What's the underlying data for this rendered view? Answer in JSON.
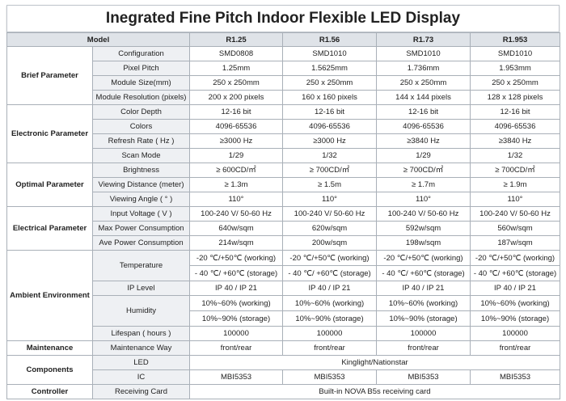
{
  "title": "Inegrated Fine Pitch Indoor Flexible LED Display",
  "header": {
    "model": "Model",
    "models": [
      "R1.25",
      "R1.56",
      "R1.73",
      "R1.953"
    ]
  },
  "groups": {
    "brief": "Brief  Parameter",
    "electronic": "Electronic Parameter",
    "optimal": "Optimal Parameter",
    "electrical": "Electrical Parameter",
    "ambient": "Ambient Environment",
    "maintenance": "Maintenance",
    "components": "Components",
    "controller": "Controller"
  },
  "rows": {
    "configuration": {
      "label": "Configuration",
      "values": [
        "SMD0808",
        "SMD1010",
        "SMD1010",
        "SMD1010"
      ]
    },
    "pixel_pitch": {
      "label": "Pixel Pitch",
      "values": [
        "1.25mm",
        "1.5625mm",
        "1.736mm",
        "1.953mm"
      ]
    },
    "module_size": {
      "label": "Module Size(mm)",
      "values": [
        "250 x 250mm",
        "250 x 250mm",
        "250 x 250mm",
        "250 x 250mm"
      ]
    },
    "module_resolution": {
      "label": "Module Resolution (pixels)",
      "values": [
        "200 x 200 pixels",
        "160 x 160 pixels",
        "144 x 144 pixels",
        "128 x 128 pixels"
      ]
    },
    "color_depth": {
      "label": "Color Depth",
      "values": [
        "12-16 bit",
        "12-16 bit",
        "12-16 bit",
        "12-16 bit"
      ]
    },
    "colors": {
      "label": "Colors",
      "values": [
        "4096-65536",
        "4096-65536",
        "4096-65536",
        "4096-65536"
      ]
    },
    "refresh_rate": {
      "label": "Refresh Rate ( Hz )",
      "values": [
        "≥3000 Hz",
        "≥3000 Hz",
        "≥3840 Hz",
        "≥3840 Hz"
      ]
    },
    "scan_mode": {
      "label": "Scan Mode",
      "values": [
        "1/29",
        "1/32",
        "1/29",
        "1/32"
      ]
    },
    "brightness": {
      "label": "Brightness",
      "values": [
        "≥ 600CD/㎡",
        "≥ 700CD/㎡",
        "≥ 700CD/㎡",
        "≥ 700CD/㎡"
      ]
    },
    "viewing_distance": {
      "label": "Viewing Distance (meter)",
      "values": [
        "≥ 1.3m",
        "≥ 1.5m",
        "≥ 1.7m",
        "≥ 1.9m"
      ]
    },
    "viewing_angle": {
      "label": "Viewing Angle ( ° )",
      "values": [
        "110°",
        "110°",
        "110°",
        "110°"
      ]
    },
    "input_voltage": {
      "label": "Input Voltage ( V )",
      "values": [
        "100-240 V/  50-60 Hz",
        "100-240 V/  50-60 Hz",
        "100-240 V/  50-60 Hz",
        "100-240 V/  50-60 Hz"
      ]
    },
    "max_power": {
      "label": "Max Power Consumption",
      "values": [
        "640w/sqm",
        "620w/sqm",
        "592w/sqm",
        "560w/sqm"
      ]
    },
    "ave_power": {
      "label": "Ave Power Consumption",
      "values": [
        "214w/sqm",
        "200w/sqm",
        "198w/sqm",
        "187w/sqm"
      ]
    },
    "temperature": {
      "label": "Temperature",
      "working": [
        "-20 ℃/+50℃ (working)",
        "-20 ℃/+50℃ (working)",
        "-20 ℃/+50℃ (working)",
        "-20 ℃/+50℃ (working)"
      ],
      "storage": [
        "-  40 ℃/ +60℃ (storage)",
        "-  40 ℃/ +60℃ (storage)",
        "-  40 ℃/ +60℃ (storage)",
        "-  40 ℃/ +60℃ (storage)"
      ]
    },
    "ip_level": {
      "label": "IP Level",
      "values": [
        "IP 40  /  IP 21",
        "IP 40  /  IP 21",
        "IP 40  /  IP 21",
        "IP 40  /  IP 21"
      ]
    },
    "humidity": {
      "label": "Humidity",
      "working": [
        "10%~60% (working)",
        "10%~60% (working)",
        "10%~60% (working)",
        "10%~60% (working)"
      ],
      "storage": [
        "10%~90%  (storage)",
        "10%~90%  (storage)",
        "10%~90%  (storage)",
        "10%~90%  (storage)"
      ]
    },
    "lifespan": {
      "label": "Lifespan ( hours )",
      "values": [
        "100000",
        "100000",
        "100000",
        "100000"
      ]
    },
    "maintenance_way": {
      "label": "Maintenance Way",
      "values": [
        "front/rear",
        "front/rear",
        "front/rear",
        "front/rear"
      ]
    },
    "led": {
      "label": "LED",
      "value": "Kinglight/Nationstar"
    },
    "ic": {
      "label": "IC",
      "values": [
        "MBI5353",
        "MBI5353",
        "MBI5353",
        "MBI5353"
      ]
    },
    "receiving_card": {
      "label": "Receiving Card",
      "value": "Built-in NOVA B5s receiving card"
    }
  }
}
